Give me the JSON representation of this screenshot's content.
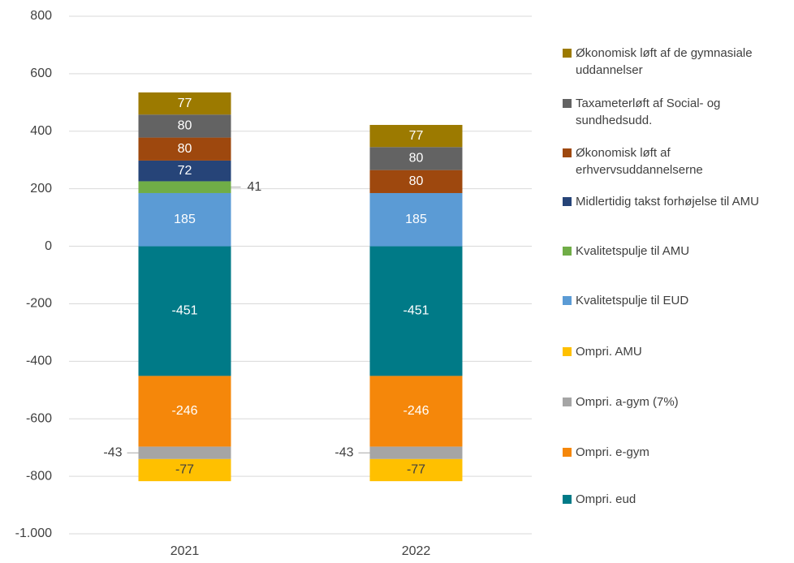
{
  "chart_data": {
    "type": "stacked_bar",
    "categories": [
      "2021",
      "2022"
    ],
    "series": [
      {
        "name": "Økonomisk løft af de gymnasiale uddannelser",
        "color": "#9c7a00",
        "values": [
          77,
          77
        ]
      },
      {
        "name": "Taxameterløft af Social- og sundhedsudd.",
        "color": "#636363",
        "values": [
          80,
          80
        ]
      },
      {
        "name": "Økonomisk løft af erhvervsuddannelserne",
        "color": "#9e480e",
        "values": [
          80,
          80
        ]
      },
      {
        "name": "Midlertidig takst forhøjelse til AMU",
        "color": "#264478",
        "values": [
          72,
          null
        ]
      },
      {
        "name": "Kvalitetspulje til AMU",
        "color": "#70ad47",
        "values": [
          41,
          null
        ]
      },
      {
        "name": "Kvalitetspulje til EUD",
        "color": "#5b9bd5",
        "values": [
          185,
          185
        ]
      },
      {
        "name": "Ompri. AMU",
        "color": "#ffc000",
        "values": [
          -77,
          -77
        ]
      },
      {
        "name": "Ompri. a-gym (7%)",
        "color": "#a5a5a5",
        "values": [
          -43,
          -43
        ]
      },
      {
        "name": "Ompri. e-gym",
        "color": "#f5870a",
        "values": [
          -246,
          -246
        ]
      },
      {
        "name": "Ompri. eud",
        "color": "#007a87",
        "values": [
          -451,
          -451
        ]
      }
    ],
    "ylim": [
      -1000,
      800
    ],
    "yticks": [
      {
        "value": -1000,
        "label": "-1.000"
      },
      -800,
      -600,
      -400,
      -200,
      0,
      200,
      400,
      600,
      800
    ],
    "grid": true,
    "legend": "right"
  }
}
